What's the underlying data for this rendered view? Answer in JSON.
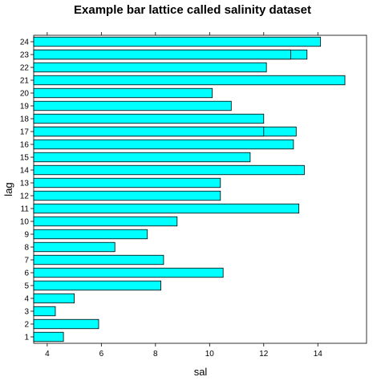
{
  "chart_data": {
    "type": "bar",
    "orientation": "horizontal",
    "title": "Example bar lattice called salinity dataset",
    "xlabel": "sal",
    "ylabel": "lag",
    "xlim": [
      3.5,
      15.8
    ],
    "x_ticks": [
      4,
      6,
      8,
      10,
      12,
      14
    ],
    "grid": false,
    "bar_color": "#00FFFF",
    "outline_color": "#000000",
    "bars": [
      {
        "lag": "1",
        "values": [
          4.6
        ]
      },
      {
        "lag": "2",
        "values": [
          5.9
        ]
      },
      {
        "lag": "3",
        "values": [
          4.3
        ]
      },
      {
        "lag": "4",
        "values": [
          5.0
        ]
      },
      {
        "lag": "5",
        "values": [
          8.2
        ]
      },
      {
        "lag": "6",
        "values": [
          10.5
        ]
      },
      {
        "lag": "7",
        "values": [
          8.3
        ]
      },
      {
        "lag": "8",
        "values": [
          6.5
        ]
      },
      {
        "lag": "9",
        "values": [
          7.7
        ]
      },
      {
        "lag": "10",
        "values": [
          8.8
        ]
      },
      {
        "lag": "11",
        "values": [
          13.3
        ]
      },
      {
        "lag": "12",
        "values": [
          10.4
        ]
      },
      {
        "lag": "13",
        "values": [
          10.4
        ]
      },
      {
        "lag": "14",
        "values": [
          13.5
        ]
      },
      {
        "lag": "15",
        "values": [
          11.5
        ]
      },
      {
        "lag": "16",
        "values": [
          13.1
        ]
      },
      {
        "lag": "17",
        "values": [
          12.0,
          13.2
        ]
      },
      {
        "lag": "18",
        "values": [
          12.0
        ]
      },
      {
        "lag": "19",
        "values": [
          10.8
        ]
      },
      {
        "lag": "20",
        "values": [
          10.1
        ]
      },
      {
        "lag": "21",
        "values": [
          15.0
        ]
      },
      {
        "lag": "22",
        "values": [
          12.1
        ]
      },
      {
        "lag": "23",
        "values": [
          13.0,
          13.6
        ]
      },
      {
        "lag": "24",
        "values": [
          14.1
        ]
      }
    ]
  }
}
